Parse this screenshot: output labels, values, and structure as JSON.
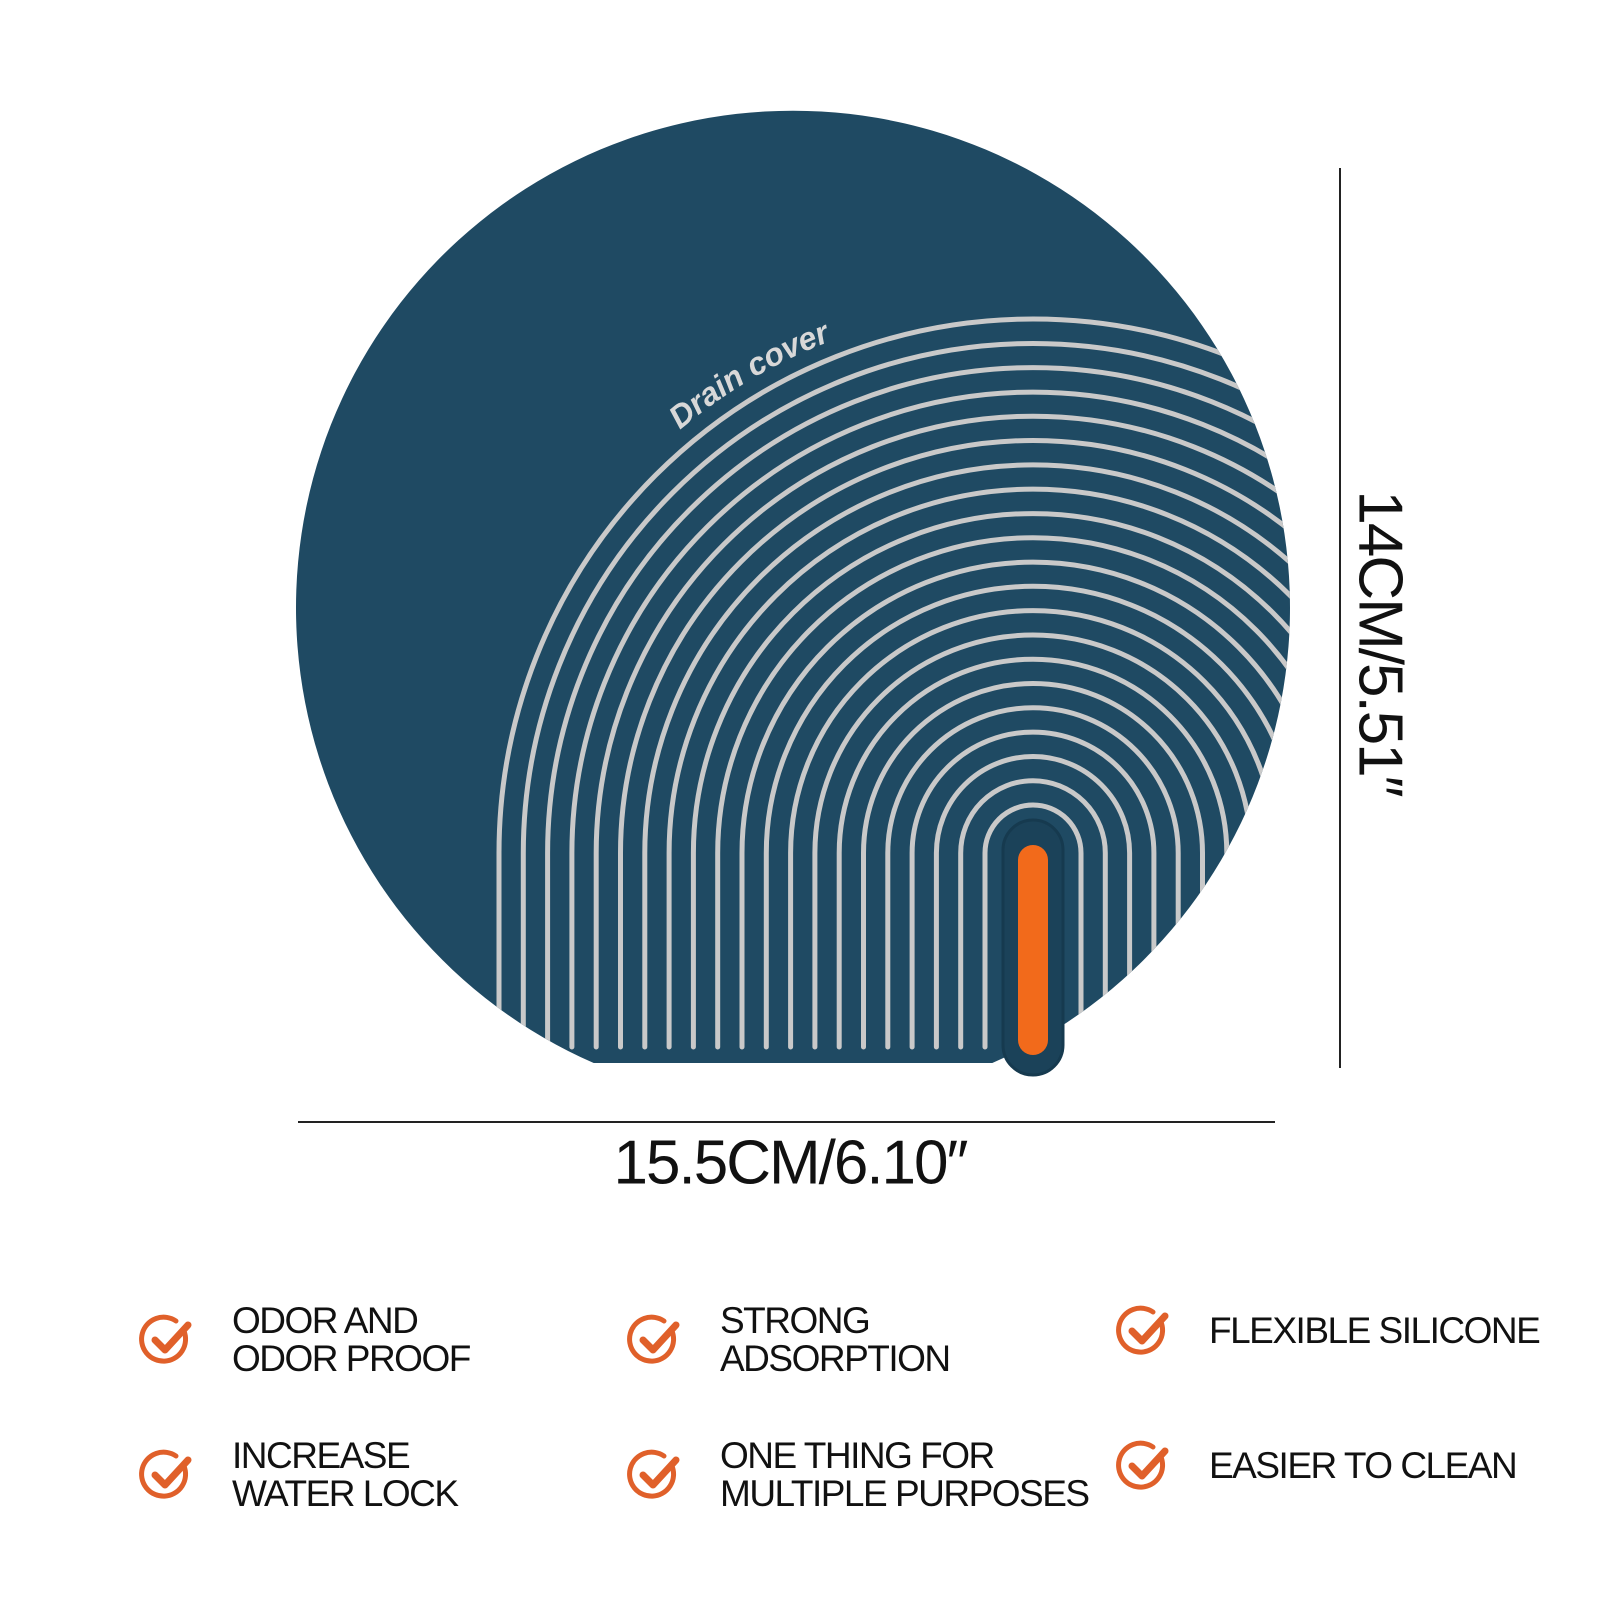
{
  "product": {
    "label": "Drain cover",
    "body_color": "#1f4a63",
    "rib_color": "#c9c9c9",
    "handle_color": "#f26a1b"
  },
  "dimensions": {
    "width": "15.5CM/6.10″",
    "height": "14CM/5.51″"
  },
  "features": [
    {
      "label": "ODOR AND\nODOR PROOF",
      "icon": "check-circle-icon"
    },
    {
      "label": "STRONG\nADSORPTION",
      "icon": "check-circle-icon"
    },
    {
      "label": "FLEXIBLE SILICONE",
      "icon": "check-circle-icon"
    },
    {
      "label": "INCREASE\nWATER LOCK",
      "icon": "check-circle-icon"
    },
    {
      "label": "ONE THING FOR\nMULTIPLE PURPOSES",
      "icon": "check-circle-icon"
    },
    {
      "label": "EASIER TO CLEAN",
      "icon": "check-circle-icon"
    }
  ],
  "accent_color": "#e0602a"
}
